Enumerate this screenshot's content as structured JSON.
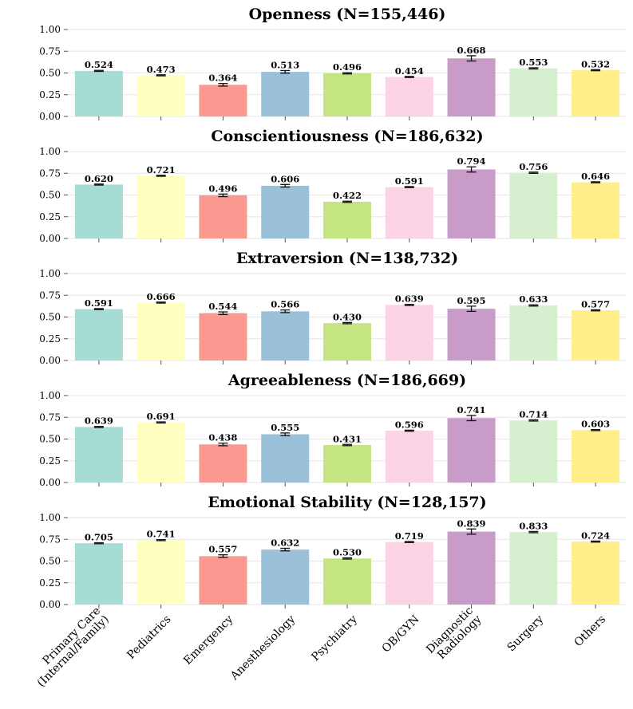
{
  "chart_data": {
    "type": "bar",
    "categories": [
      "Primary Care\n(Internal/Family)",
      "Pediatrics",
      "Emergency",
      "Anesthesiology",
      "Psychiatry",
      "OB/GYN",
      "Diagnostic\nRadiology",
      "Surgery",
      "Others"
    ],
    "colors": [
      "#a6dcd3",
      "#ffffc0",
      "#f9998f",
      "#9bc1da",
      "#c5e582",
      "#fcd3e5",
      "#c99bc9",
      "#d5efcf",
      "#ffee8a"
    ],
    "ylim": [
      0,
      1
    ],
    "yticks": [
      0.0,
      0.25,
      0.5,
      0.75,
      1.0
    ],
    "ytick_labels": [
      "0.00",
      "0.25",
      "0.50",
      "0.75",
      "1.00"
    ],
    "grid": true,
    "panels": [
      {
        "title": "Openness (N=155,446)",
        "values": [
          0.524,
          0.473,
          0.364,
          0.513,
          0.496,
          0.454,
          0.668,
          0.553,
          0.532
        ],
        "labels": [
          "0.524",
          "0.473",
          "0.364",
          "0.513",
          "0.496",
          "0.454",
          "0.668",
          "0.553",
          "0.532"
        ],
        "errors": [
          0.006,
          0.006,
          0.015,
          0.015,
          0.007,
          0.006,
          0.03,
          0.007,
          0.006
        ]
      },
      {
        "title": "Conscientiousness (N=186,632)",
        "values": [
          0.62,
          0.721,
          0.496,
          0.606,
          0.422,
          0.591,
          0.794,
          0.756,
          0.646
        ],
        "labels": [
          "0.620",
          "0.721",
          "0.496",
          "0.606",
          "0.422",
          "0.591",
          "0.794",
          "0.756",
          "0.646"
        ],
        "errors": [
          0.006,
          0.006,
          0.015,
          0.015,
          0.007,
          0.006,
          0.03,
          0.007,
          0.006
        ]
      },
      {
        "title": "Extraversion (N=138,732)",
        "values": [
          0.591,
          0.666,
          0.544,
          0.566,
          0.43,
          0.639,
          0.595,
          0.633,
          0.577
        ],
        "labels": [
          "0.591",
          "0.666",
          "0.544",
          "0.566",
          "0.430",
          "0.639",
          "0.595",
          "0.633",
          "0.577"
        ],
        "errors": [
          0.006,
          0.006,
          0.015,
          0.015,
          0.007,
          0.006,
          0.03,
          0.007,
          0.006
        ]
      },
      {
        "title": "Agreeableness (N=186,669)",
        "values": [
          0.639,
          0.691,
          0.438,
          0.555,
          0.431,
          0.596,
          0.741,
          0.714,
          0.603
        ],
        "labels": [
          "0.639",
          "0.691",
          "0.438",
          "0.555",
          "0.431",
          "0.596",
          "0.741",
          "0.714",
          "0.603"
        ],
        "errors": [
          0.006,
          0.006,
          0.015,
          0.015,
          0.007,
          0.006,
          0.03,
          0.007,
          0.006
        ]
      },
      {
        "title": "Emotional Stability (N=128,157)",
        "values": [
          0.705,
          0.741,
          0.557,
          0.632,
          0.53,
          0.719,
          0.839,
          0.833,
          0.724
        ],
        "labels": [
          "0.705",
          "0.741",
          "0.557",
          "0.632",
          "0.530",
          "0.719",
          "0.839",
          "0.833",
          "0.724"
        ],
        "errors": [
          0.006,
          0.006,
          0.015,
          0.015,
          0.007,
          0.006,
          0.03,
          0.007,
          0.006
        ]
      }
    ]
  }
}
